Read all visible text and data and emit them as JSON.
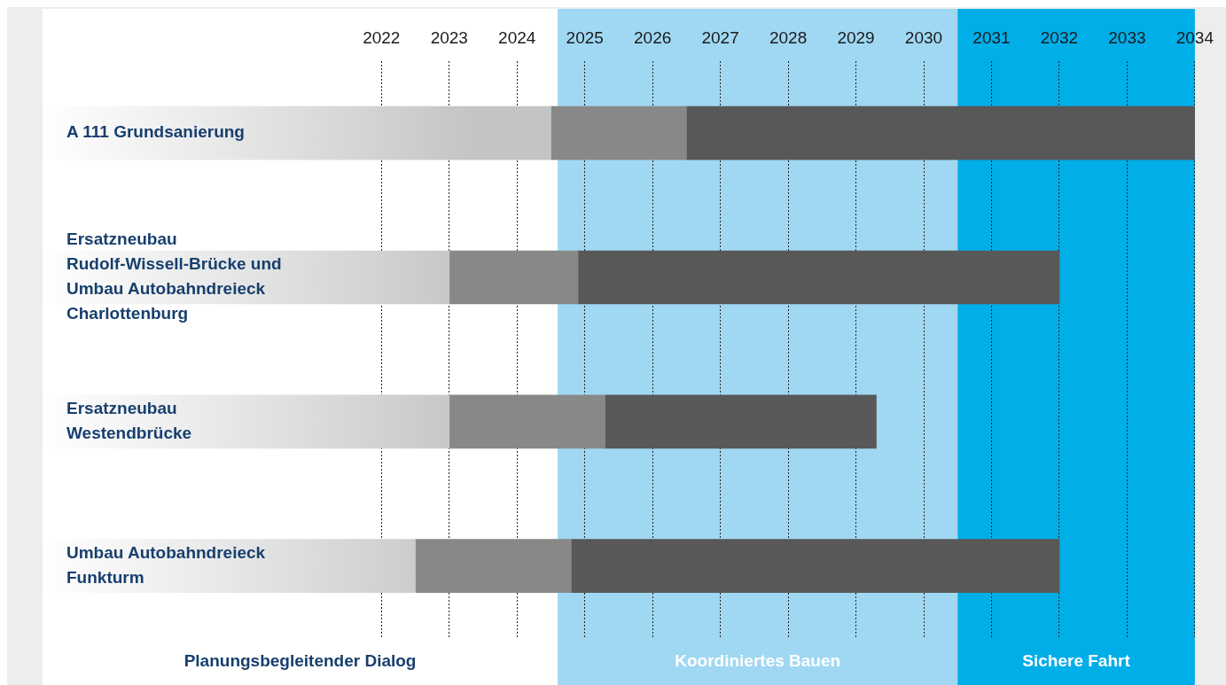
{
  "chart_data": {
    "type": "bar",
    "orientation": "horizontal",
    "categories": [
      "A 111 Grundsanierung",
      "Ersatzneubau Rudolf-Wissell-Brücke und Umbau Autobahndreieck Charlottenburg",
      "Ersatzneubau Westendbrücke",
      "Umbau Autobahndreieck Funkturm"
    ],
    "series": [
      {
        "color": "#c3c4c4",
        "base": [
          2017,
          2017,
          2017,
          2017
        ],
        "values": [
          7.5,
          6.0,
          6.0,
          5.5
        ]
      },
      {
        "color": "#878887",
        "base": [
          2024.5,
          2023.0,
          2023.0,
          2022.5
        ],
        "values": [
          2.0,
          1.9,
          2.3,
          2.3
        ]
      },
      {
        "color": "#575857",
        "base": [
          2026.5,
          2024.9,
          2025.3,
          2024.8
        ],
        "values": [
          7.5,
          7.1,
          4.0,
          7.2
        ]
      }
    ],
    "xlim": [
      2017,
      2034
    ],
    "xticks": [
      2022,
      2023,
      2024,
      2025,
      2026,
      2027,
      2028,
      2029,
      2030,
      2031,
      2032,
      2033,
      2034
    ],
    "grid": "x",
    "legend": false,
    "bands": [
      {
        "axis": "x",
        "from": 2017,
        "to": 2024.6,
        "label": "Planungsbegleitender Dialog",
        "color": "#ffffff"
      },
      {
        "axis": "x",
        "from": 2024.6,
        "to": 2030.5,
        "label": "Koordiniertes Bauen",
        "color": "#a0d8f3"
      },
      {
        "axis": "x",
        "from": 2030.5,
        "to": 2034,
        "label": "Sichere Fahrt",
        "color": "#00aee8"
      }
    ]
  }
}
